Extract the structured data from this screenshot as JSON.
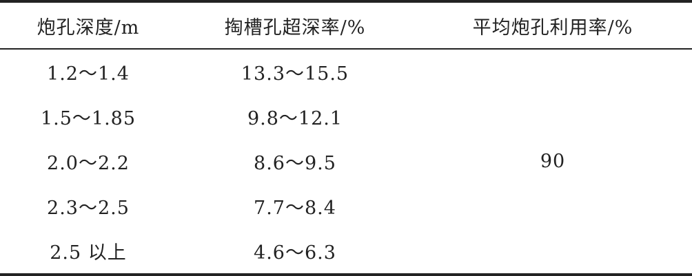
{
  "table": {
    "headers": [
      "炮孔深度/m",
      "掏槽孔超深率/%",
      "平均炮孔利用率/%"
    ],
    "rows": [
      [
        "1.2～1.4",
        "13.3～15.5"
      ],
      [
        "1.5～1.85",
        "9.8～12.1"
      ],
      [
        "2.0～2.2",
        "8.6～9.5"
      ],
      [
        "2.3～2.5",
        "7.7～8.4"
      ],
      [
        "2.5 以上",
        "4.6～6.3"
      ]
    ],
    "merged_value": "90"
  }
}
